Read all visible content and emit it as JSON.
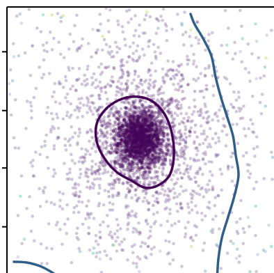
{
  "chart_data": {
    "type": "scatter",
    "title": "",
    "xlabel": "",
    "ylabel": "",
    "xlim": [
      0,
      384
    ],
    "ylim": [
      0,
      380
    ],
    "grid": false,
    "legend": "none",
    "density_cluster": {
      "center": [
        191,
        189
      ],
      "spread_core": [
        17,
        19
      ],
      "spread_halo": [
        85,
        100
      ],
      "point_color": "#45065a",
      "point_alpha": 0.28
    },
    "outer_points": {
      "colors": [
        "#9fb8d8",
        "#6fa9c0",
        "#5ec8a6",
        "#b8de5a"
      ]
    },
    "y_ticks": [
      314,
      230,
      148,
      64
    ],
    "contours": [
      {
        "level": "inner",
        "color": "#440154",
        "points": [
          [
            183,
            128
          ],
          [
            206,
            133
          ],
          [
            226,
            152
          ],
          [
            237,
            180
          ],
          [
            240,
            212
          ],
          [
            234,
            240
          ],
          [
            217,
            255
          ],
          [
            198,
            258
          ],
          [
            179,
            248
          ],
          [
            158,
            236
          ],
          [
            140,
            216
          ],
          [
            129,
            192
          ],
          [
            129,
            167
          ],
          [
            141,
            147
          ],
          [
            161,
            133
          ]
        ]
      },
      {
        "level": "outer-right",
        "color": "#2f5f88",
        "points": [
          [
            264,
            10
          ],
          [
            270,
            25
          ],
          [
            282,
            45
          ],
          [
            294,
            70
          ],
          [
            300,
            100
          ],
          [
            308,
            130
          ],
          [
            317,
            158
          ],
          [
            325,
            184
          ],
          [
            329,
            212
          ],
          [
            333,
            240
          ],
          [
            327,
            270
          ],
          [
            318,
            300
          ],
          [
            309,
            330
          ],
          [
            304,
            360
          ],
          [
            302,
            392
          ]
        ]
      },
      {
        "level": "outer-bottom-left",
        "color": "#2f5f88",
        "points": [
          [
            10,
            364
          ],
          [
            28,
            365
          ],
          [
            47,
            370
          ],
          [
            63,
            378
          ],
          [
            74,
            386
          ],
          [
            78,
            392
          ]
        ]
      }
    ]
  }
}
